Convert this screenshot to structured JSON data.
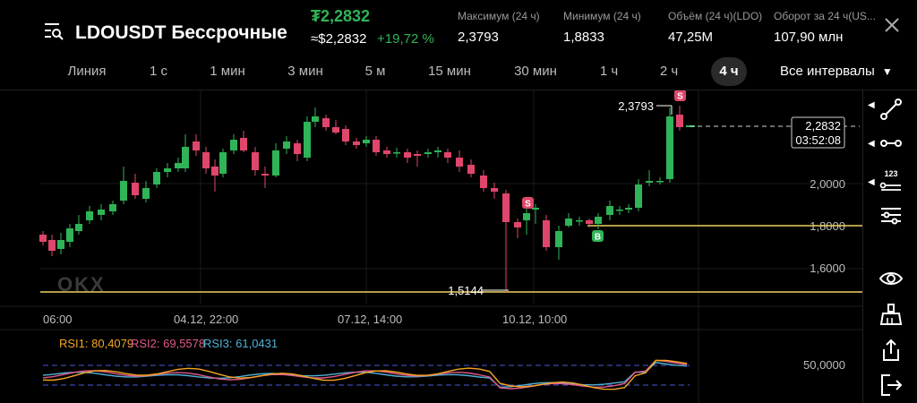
{
  "header": {
    "title": "LDOUSDT Бессрочные",
    "price": "₮2,2832",
    "price_approx": "≈$2,2832",
    "change": "+19,72 %",
    "stats": [
      {
        "label": "Максимум (24 ч)",
        "value": "2,3793"
      },
      {
        "label": "Минимум (24 ч)",
        "value": "1,8833"
      },
      {
        "label": "Объём (24 ч)(LDO)",
        "value": "47,25M"
      },
      {
        "label": "Оборот за 24 ч(US...",
        "value": "107,90 млн"
      }
    ]
  },
  "intervals": [
    "Линия",
    "1 с",
    "1 мин",
    "3 мин",
    "5 м",
    "15 мин",
    "30 мин",
    "1 ч",
    "2 ч",
    "4 ч"
  ],
  "active_interval": "4 ч",
  "all_intervals_label": "Все интервалы",
  "chart": {
    "y_ticks": [
      "2,0000",
      "1,8000",
      "1,6000"
    ],
    "x_ticks": [
      "06:00",
      "04.12, 22:00",
      "07.12, 14:00",
      "10.12, 10:00"
    ],
    "current_price": "2,2832",
    "countdown": "03:52:08",
    "high_label": "2,3793",
    "low_label": "1,5144",
    "level_line": "1,8000",
    "marker_sell": "S",
    "marker_buy": "B",
    "watermark": "OKX"
  },
  "rsi": {
    "rsi1": "RSI1: 80,4079",
    "rsi2": "RSI2: 69,5578",
    "rsi3": "RSI3: 61,0431",
    "level": "50,0000"
  },
  "colors": {
    "up": "#2fb457",
    "down": "#e0466b",
    "rsi1": "#f5a623",
    "rsi2": "#e05a8a",
    "rsi3": "#4fb0d6",
    "level": "#f0d060"
  },
  "toolbar_icons": [
    "trend-line-icon",
    "horizontal-line-icon",
    "indicator-123-icon",
    "settings-sliders-icon",
    "eye-icon",
    "brush-icon",
    "share-icon",
    "exit-icon"
  ]
}
